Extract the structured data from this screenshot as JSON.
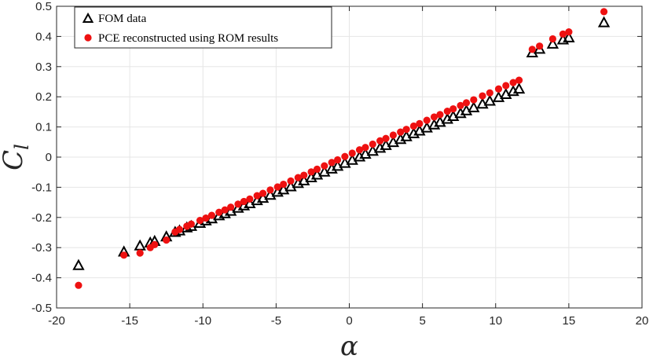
{
  "chart_data": {
    "type": "scatter",
    "title": "",
    "xlabel": "α",
    "ylabel_main": "C",
    "ylabel_sub": "l",
    "xlim": [
      -20,
      20
    ],
    "ylim": [
      -0.5,
      0.5
    ],
    "xticks": [
      "-20",
      "-15",
      "-10",
      "-5",
      "0",
      "5",
      "10",
      "15",
      "20"
    ],
    "yticks": [
      "-0.5",
      "-0.4",
      "-0.3",
      "-0.2",
      "-0.1",
      "0",
      "0.1",
      "0.2",
      "0.3",
      "0.4",
      "0.5"
    ],
    "grid": true,
    "legend_position": "top-left",
    "series": [
      {
        "name": "FOM data",
        "marker": "triangle",
        "color": "#000000",
        "x": [
          -18.5,
          -15.4,
          -14.3,
          -13.6,
          -13.3,
          -12.5,
          -11.9,
          -11.6,
          -11.1,
          -10.8,
          -10.2,
          -9.8,
          -9.4,
          -8.9,
          -8.5,
          -8.1,
          -7.6,
          -7.2,
          -6.8,
          -6.3,
          -5.9,
          -5.4,
          -4.9,
          -4.5,
          -4.0,
          -3.5,
          -3.1,
          -2.6,
          -2.2,
          -1.7,
          -1.2,
          -0.8,
          -0.3,
          0.2,
          0.7,
          1.1,
          1.6,
          2.1,
          2.5,
          3.0,
          3.5,
          3.9,
          4.4,
          4.8,
          5.3,
          5.8,
          6.2,
          6.7,
          7.1,
          7.6,
          8.0,
          8.5,
          9.1,
          9.6,
          10.2,
          10.7,
          11.2,
          11.6,
          12.5,
          13.0,
          13.9,
          14.6,
          15.0,
          17.4
        ],
        "y": [
          -0.36,
          -0.315,
          -0.295,
          -0.285,
          -0.28,
          -0.265,
          -0.25,
          -0.245,
          -0.235,
          -0.23,
          -0.22,
          -0.212,
          -0.205,
          -0.195,
          -0.188,
          -0.18,
          -0.17,
          -0.162,
          -0.155,
          -0.145,
          -0.137,
          -0.127,
          -0.117,
          -0.109,
          -0.099,
          -0.088,
          -0.079,
          -0.069,
          -0.06,
          -0.05,
          -0.04,
          -0.031,
          -0.021,
          -0.011,
          0.0,
          0.009,
          0.019,
          0.029,
          0.038,
          0.048,
          0.058,
          0.067,
          0.077,
          0.086,
          0.096,
          0.106,
          0.115,
          0.125,
          0.134,
          0.144,
          0.153,
          0.163,
          0.175,
          0.185,
          0.197,
          0.207,
          0.217,
          0.225,
          0.345,
          0.357,
          0.374,
          0.388,
          0.395,
          0.445
        ]
      },
      {
        "name": "PCE reconstructed using ROM results",
        "marker": "circle",
        "color": "#ee1111",
        "x": [
          -18.5,
          -15.4,
          -14.3,
          -13.6,
          -13.3,
          -12.5,
          -11.9,
          -11.6,
          -11.1,
          -10.8,
          -10.2,
          -9.8,
          -9.4,
          -8.9,
          -8.5,
          -8.1,
          -7.6,
          -7.2,
          -6.8,
          -6.3,
          -5.9,
          -5.4,
          -4.9,
          -4.5,
          -4.0,
          -3.5,
          -3.1,
          -2.6,
          -2.2,
          -1.7,
          -1.2,
          -0.8,
          -0.3,
          0.2,
          0.7,
          1.1,
          1.6,
          2.1,
          2.5,
          3.0,
          3.5,
          3.9,
          4.4,
          4.8,
          5.3,
          5.8,
          6.2,
          6.7,
          7.1,
          7.6,
          8.0,
          8.5,
          9.1,
          9.6,
          10.2,
          10.7,
          11.2,
          11.6,
          12.5,
          13.0,
          13.9,
          14.6,
          15.0,
          17.4
        ],
        "y": [
          -0.425,
          -0.325,
          -0.318,
          -0.3,
          -0.29,
          -0.275,
          -0.248,
          -0.24,
          -0.229,
          -0.222,
          -0.21,
          -0.202,
          -0.193,
          -0.183,
          -0.175,
          -0.166,
          -0.156,
          -0.147,
          -0.139,
          -0.128,
          -0.12,
          -0.109,
          -0.099,
          -0.09,
          -0.079,
          -0.068,
          -0.06,
          -0.049,
          -0.04,
          -0.029,
          -0.018,
          -0.009,
          0.002,
          0.013,
          0.024,
          0.032,
          0.043,
          0.054,
          0.062,
          0.073,
          0.083,
          0.092,
          0.103,
          0.111,
          0.122,
          0.133,
          0.141,
          0.152,
          0.16,
          0.171,
          0.18,
          0.19,
          0.203,
          0.213,
          0.226,
          0.237,
          0.247,
          0.255,
          0.357,
          0.368,
          0.392,
          0.408,
          0.415,
          0.482
        ]
      }
    ]
  }
}
